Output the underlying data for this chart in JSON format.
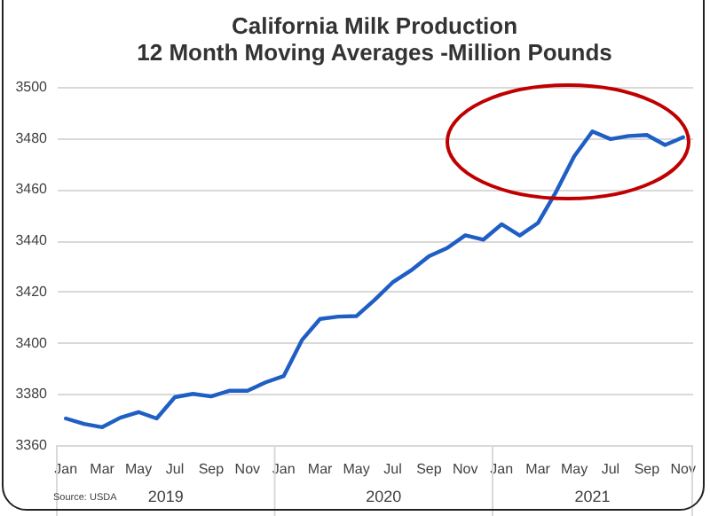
{
  "chart_data": {
    "type": "line",
    "title": "California Milk Production",
    "subtitle": "12 Month Moving Averages -Million Pounds",
    "categories": [
      "Jan",
      null,
      "Mar",
      null,
      "May",
      null,
      "Jul",
      null,
      "Sep",
      null,
      "Nov",
      null,
      "Jan",
      null,
      "Mar",
      null,
      "May",
      null,
      "Jul",
      null,
      "Sep",
      null,
      "Nov",
      null,
      "Jan",
      null,
      "Mar",
      null,
      "May",
      null,
      "Jul",
      null,
      "Sep",
      null,
      "Nov"
    ],
    "series": [
      {
        "color": "#1f5fc4",
        "values": [
          3370.4,
          3368.3,
          3367,
          3370.7,
          3372.9,
          3370.4,
          3378.7,
          3380,
          3379,
          3381.2,
          3381.2,
          3384.5,
          3387,
          3401,
          3409.3,
          3410.2,
          3410.4,
          3416.7,
          3423.6,
          3428.2,
          3433.8,
          3437,
          3442,
          3440.3,
          3446.3,
          3441.9,
          3446.8,
          3459,
          3472.9,
          3482.6,
          3479.6,
          3480.8,
          3481.2,
          3477.3,
          3480.3
        ]
      }
    ],
    "ylim": [
      3360,
      3500
    ],
    "yticks": [
      3360,
      3380,
      3400,
      3420,
      3440,
      3460,
      3480,
      3500
    ],
    "grid": "y",
    "annotations": [
      "2019",
      "2020",
      "2021",
      "Source: USDA"
    ]
  }
}
